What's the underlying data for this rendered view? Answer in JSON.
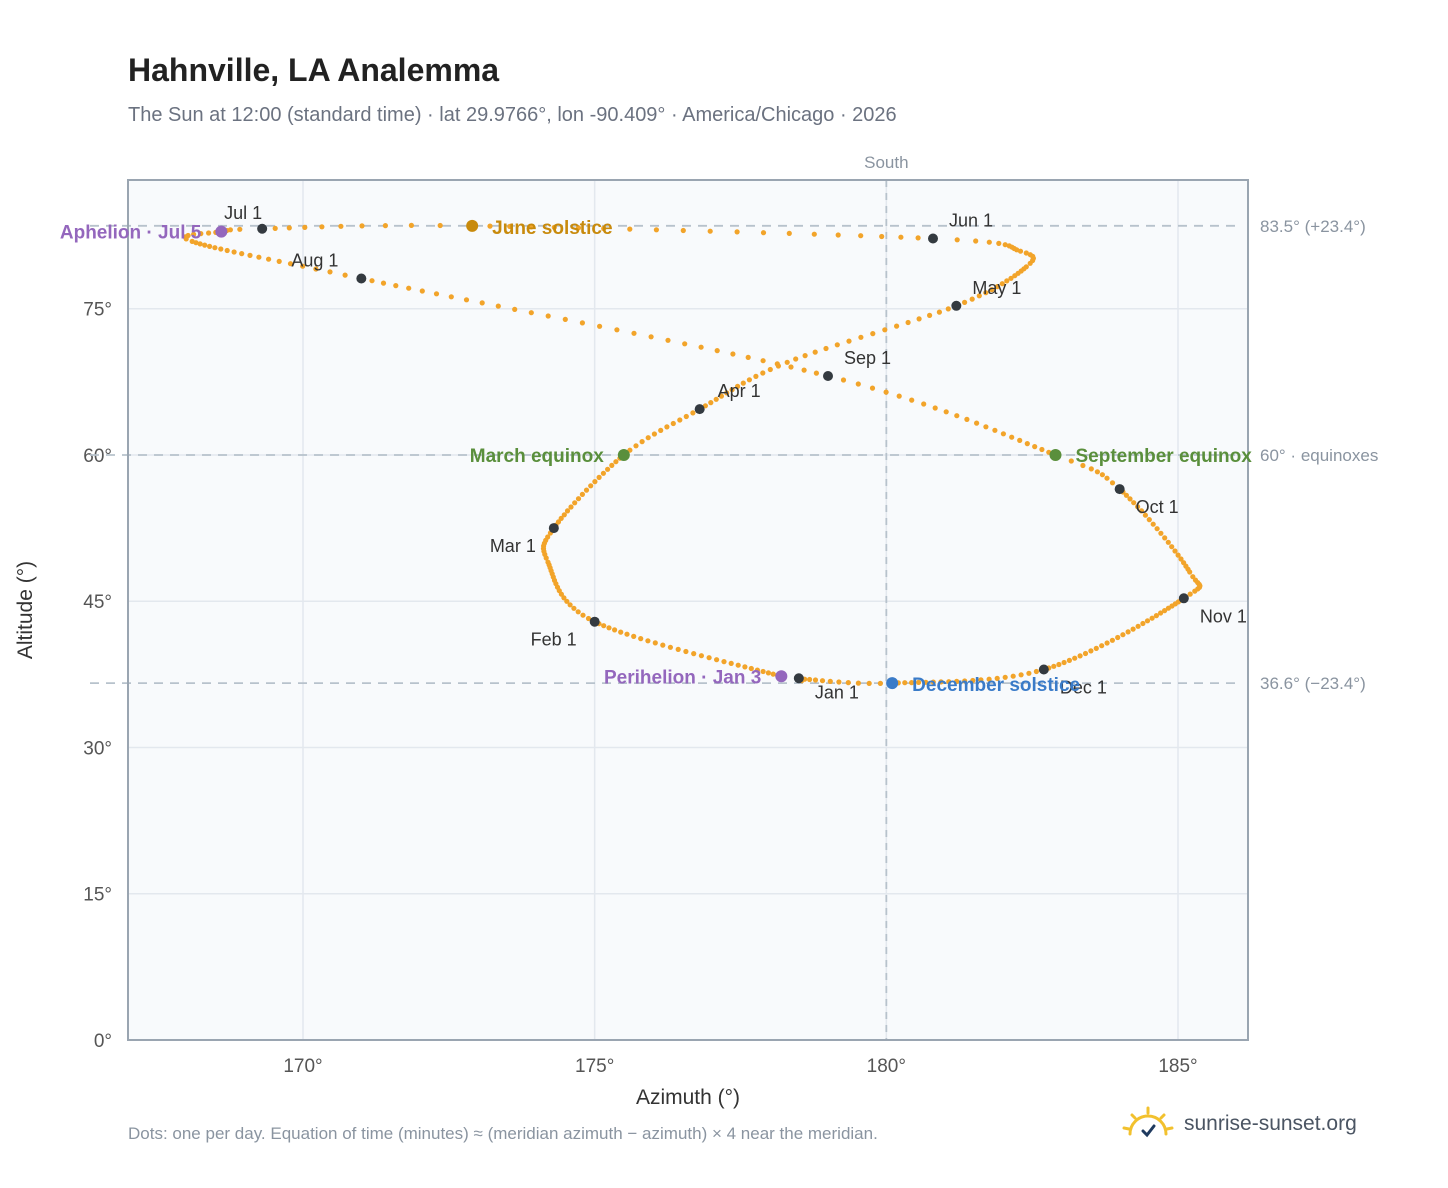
{
  "title": "Hahnville, LA Analemma",
  "subtitle": "The Sun at 12:00 (standard time) · lat 29.9766°, lon -90.409° · America/Chicago · 2026",
  "footnote": "Dots: one per day. Equation of time (minutes) ≈ (meridian azimuth − azimuth) × 4 near the meridian.",
  "brand": {
    "name": "sunrise-sunset.org",
    "icon": "sun-logo-icon"
  },
  "colors": {
    "curve": "#f2a42a",
    "month_marker": "#343a40",
    "equinox": "#5a8f3c",
    "june_solstice": "#c88a0c",
    "december_solstice": "#3a7bc8",
    "apsis": "#9467bd",
    "reference_line": "#b7c2cc",
    "plot_bg": "#f8fafc"
  },
  "chart_data": {
    "type": "scatter",
    "xlabel": "Azimuth (°)",
    "ylabel": "Altitude (°)",
    "xlim": [
      167,
      186.2
    ],
    "ylim": [
      0,
      88.2
    ],
    "x_ticks": [
      170,
      175,
      180,
      185
    ],
    "x_tick_labels": [
      "170°",
      "175°",
      "180°",
      "185°"
    ],
    "y_ticks": [
      0,
      15,
      30,
      45,
      60,
      75
    ],
    "y_tick_labels": [
      "0°",
      "15°",
      "30°",
      "45°",
      "60°",
      "75°"
    ],
    "grid": true,
    "meridian": {
      "azimuth": 180,
      "label": "South"
    },
    "reference_lines": [
      {
        "altitude": 83.5,
        "label": "83.5° (+23.4°)"
      },
      {
        "altitude": 60,
        "label": "60° · equinoxes"
      },
      {
        "altitude": 36.6,
        "label": "36.6° (−23.4°)"
      }
    ],
    "path_keypoints": [
      {
        "doy": 1,
        "az": 178.5,
        "alt": 37.1
      },
      {
        "doy": 3,
        "az": 178.2,
        "alt": 37.3
      },
      {
        "doy": 32,
        "az": 175.0,
        "alt": 42.9
      },
      {
        "doy": 50,
        "az": 174.2,
        "alt": 49.0
      },
      {
        "doy": 60,
        "az": 174.3,
        "alt": 52.5
      },
      {
        "doy": 79,
        "az": 175.5,
        "alt": 60.0
      },
      {
        "doy": 91,
        "az": 176.8,
        "alt": 64.7
      },
      {
        "doy": 105,
        "az": 178.3,
        "alt": 69.5
      },
      {
        "doy": 121,
        "az": 181.2,
        "alt": 75.3
      },
      {
        "doy": 135,
        "az": 182.4,
        "alt": 79.3
      },
      {
        "doy": 142,
        "az": 182.3,
        "alt": 80.9
      },
      {
        "doy": 152,
        "az": 180.8,
        "alt": 82.2
      },
      {
        "doy": 172,
        "az": 172.9,
        "alt": 83.5
      },
      {
        "doy": 182,
        "az": 169.3,
        "alt": 83.2
      },
      {
        "doy": 186,
        "az": 168.6,
        "alt": 82.9
      },
      {
        "doy": 194,
        "az": 168.1,
        "alt": 81.9
      },
      {
        "doy": 213,
        "az": 171.0,
        "alt": 78.1
      },
      {
        "doy": 244,
        "az": 179.0,
        "alt": 68.1
      },
      {
        "doy": 266,
        "az": 182.9,
        "alt": 60.0
      },
      {
        "doy": 274,
        "az": 184.0,
        "alt": 56.5
      },
      {
        "doy": 295,
        "az": 185.2,
        "alt": 48.0
      },
      {
        "doy": 305,
        "az": 185.1,
        "alt": 45.3
      },
      {
        "doy": 335,
        "az": 182.7,
        "alt": 38.0
      },
      {
        "doy": 355,
        "az": 180.1,
        "alt": 36.6
      },
      {
        "doy": 365,
        "az": 178.6,
        "alt": 37.0
      }
    ],
    "month_markers": [
      {
        "label": "Jan 1",
        "az": 178.5,
        "alt": 37.1
      },
      {
        "label": "Feb 1",
        "az": 175.0,
        "alt": 42.9
      },
      {
        "label": "Mar 1",
        "az": 174.3,
        "alt": 52.5
      },
      {
        "label": "Apr 1",
        "az": 176.8,
        "alt": 64.7
      },
      {
        "label": "May 1",
        "az": 181.2,
        "alt": 75.3
      },
      {
        "label": "Jun 1",
        "az": 180.8,
        "alt": 82.2
      },
      {
        "label": "Jul 1",
        "az": 169.3,
        "alt": 83.2
      },
      {
        "label": "Aug 1",
        "az": 171.0,
        "alt": 78.1
      },
      {
        "label": "Sep 1",
        "az": 179.0,
        "alt": 68.1
      },
      {
        "label": "Oct 1",
        "az": 184.0,
        "alt": 56.5
      },
      {
        "label": "Nov 1",
        "az": 185.1,
        "alt": 45.3
      },
      {
        "label": "Dec 1",
        "az": 182.7,
        "alt": 38.0
      }
    ],
    "events": [
      {
        "label": "June solstice",
        "az": 172.9,
        "alt": 83.5,
        "kind": "june_solstice"
      },
      {
        "label": "December solstice",
        "az": 180.1,
        "alt": 36.6,
        "kind": "december_solstice"
      },
      {
        "label": "March equinox",
        "az": 175.5,
        "alt": 60.0,
        "kind": "equinox"
      },
      {
        "label": "September equinox",
        "az": 182.9,
        "alt": 60.0,
        "kind": "equinox"
      },
      {
        "label": "Aphelion · Jul 5",
        "az": 168.6,
        "alt": 82.9,
        "kind": "apsis"
      },
      {
        "label": "Perihelion · Jan 3",
        "az": 178.2,
        "alt": 37.3,
        "kind": "apsis"
      }
    ]
  }
}
